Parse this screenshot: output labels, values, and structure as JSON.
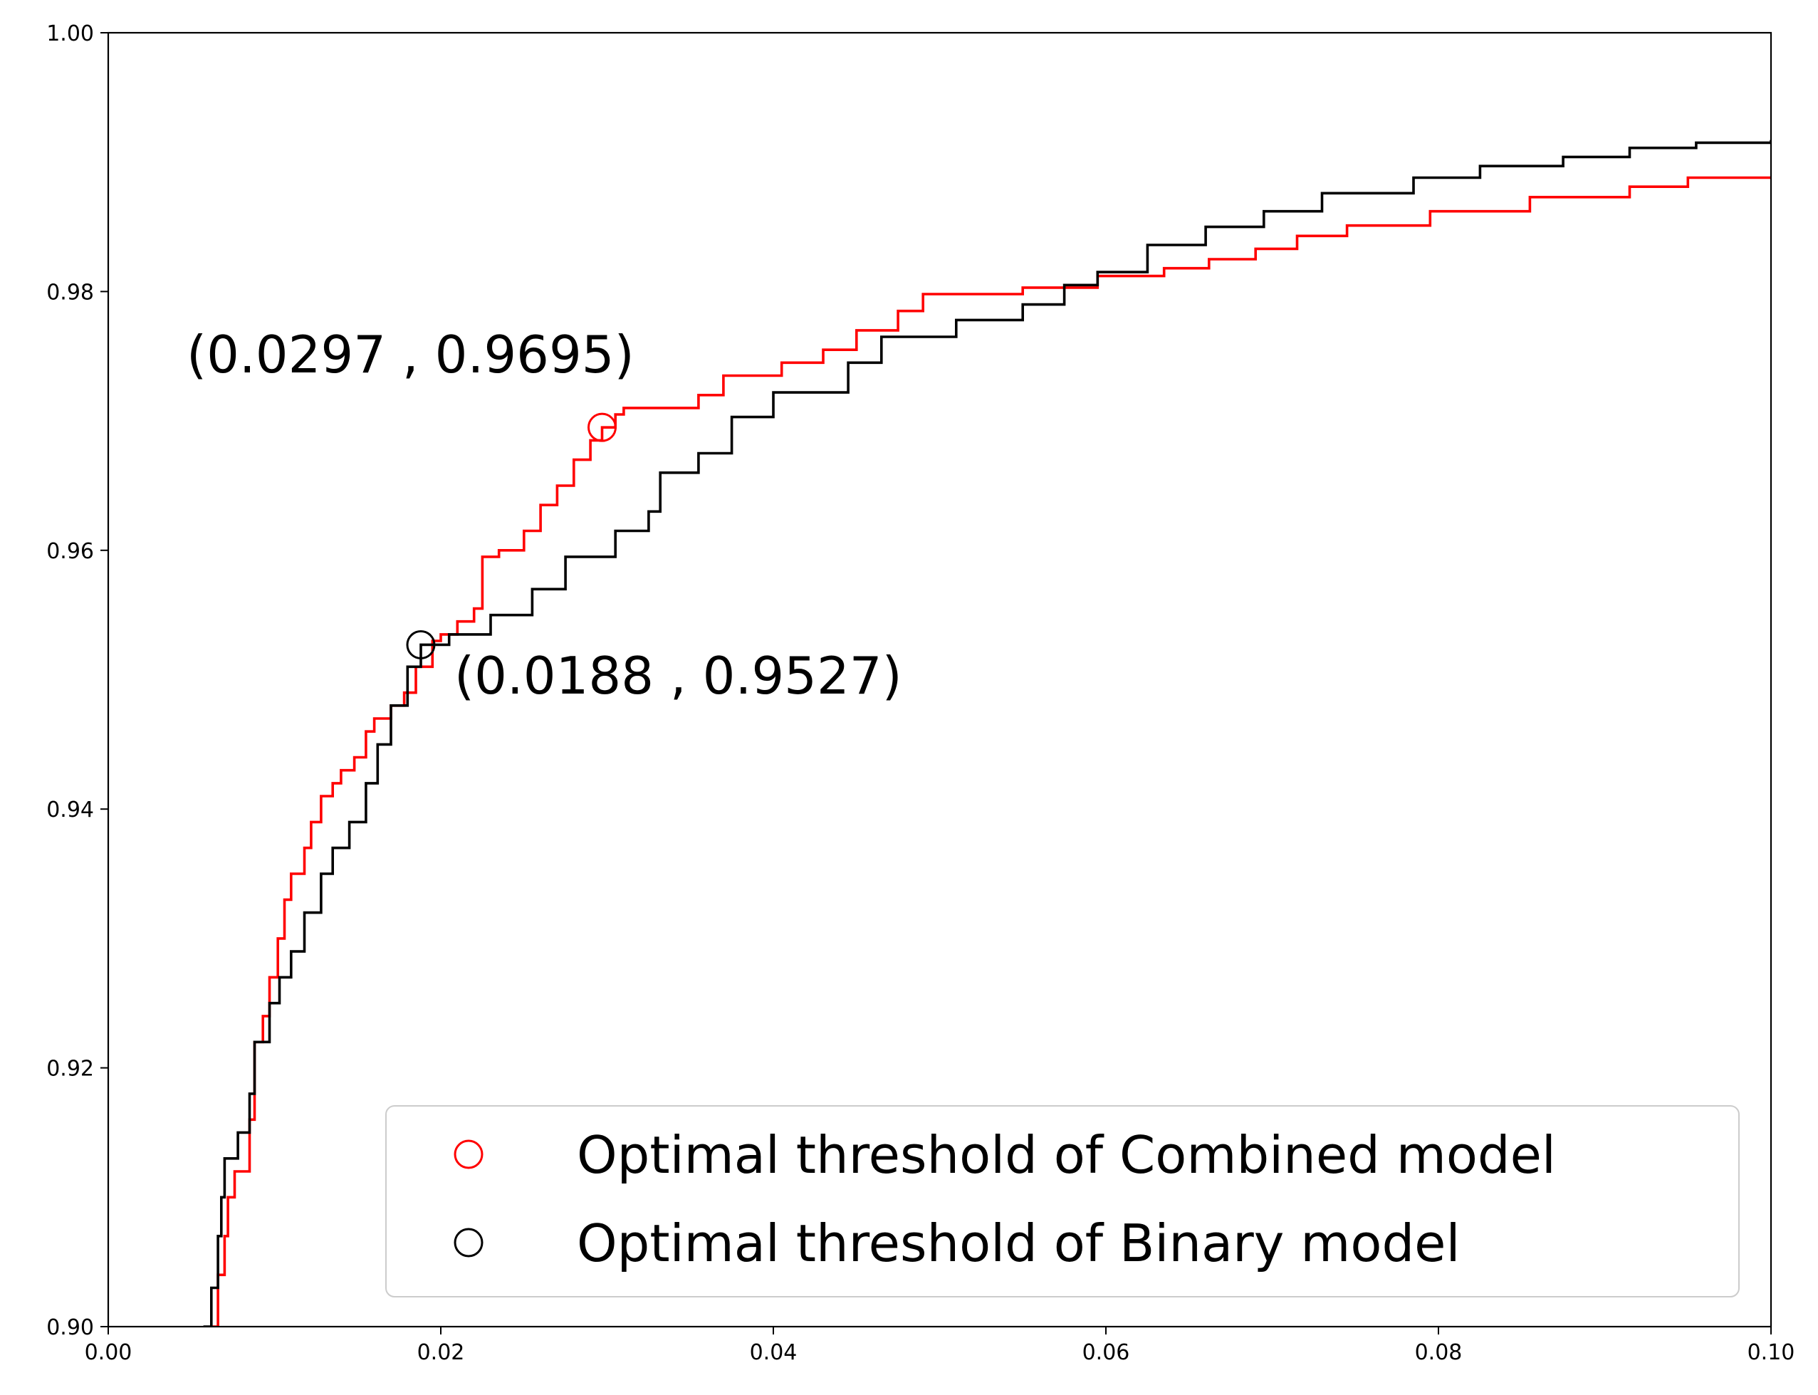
{
  "chart_data": {
    "type": "line",
    "xlim": [
      0.0,
      0.1
    ],
    "ylim": [
      0.9,
      1.0
    ],
    "x_ticks": [
      "0.00",
      "0.02",
      "0.04",
      "0.06",
      "0.08",
      "0.10"
    ],
    "y_ticks": [
      "0.90",
      "0.92",
      "0.94",
      "0.96",
      "0.98",
      "1.00"
    ],
    "grid": false,
    "legend_position": "lower-right",
    "series": [
      {
        "color": "#ff0000",
        "step": true,
        "points": [
          [
            0.0063,
            0.9
          ],
          [
            0.0066,
            0.904
          ],
          [
            0.007,
            0.907
          ],
          [
            0.0072,
            0.91
          ],
          [
            0.0076,
            0.912
          ],
          [
            0.0085,
            0.916
          ],
          [
            0.0088,
            0.922
          ],
          [
            0.0093,
            0.924
          ],
          [
            0.0097,
            0.927
          ],
          [
            0.0102,
            0.93
          ],
          [
            0.0106,
            0.933
          ],
          [
            0.011,
            0.935
          ],
          [
            0.0118,
            0.937
          ],
          [
            0.0122,
            0.939
          ],
          [
            0.0128,
            0.941
          ],
          [
            0.0135,
            0.942
          ],
          [
            0.014,
            0.943
          ],
          [
            0.0148,
            0.944
          ],
          [
            0.0155,
            0.946
          ],
          [
            0.016,
            0.947
          ],
          [
            0.017,
            0.948
          ],
          [
            0.0178,
            0.949
          ],
          [
            0.0185,
            0.951
          ],
          [
            0.0195,
            0.953
          ],
          [
            0.02,
            0.9535
          ],
          [
            0.021,
            0.9545
          ],
          [
            0.022,
            0.9555
          ],
          [
            0.0225,
            0.9595
          ],
          [
            0.0235,
            0.96
          ],
          [
            0.025,
            0.9615
          ],
          [
            0.026,
            0.9635
          ],
          [
            0.027,
            0.965
          ],
          [
            0.028,
            0.967
          ],
          [
            0.029,
            0.9685
          ],
          [
            0.0297,
            0.9695
          ],
          [
            0.0305,
            0.9705
          ],
          [
            0.031,
            0.971
          ],
          [
            0.0355,
            0.972
          ],
          [
            0.037,
            0.9735
          ],
          [
            0.0405,
            0.9745
          ],
          [
            0.043,
            0.9755
          ],
          [
            0.045,
            0.977
          ],
          [
            0.0475,
            0.9785
          ],
          [
            0.049,
            0.9798
          ],
          [
            0.055,
            0.9803
          ],
          [
            0.0595,
            0.9812
          ],
          [
            0.0635,
            0.9818
          ],
          [
            0.0662,
            0.9825
          ],
          [
            0.069,
            0.9833
          ],
          [
            0.0715,
            0.9843
          ],
          [
            0.0745,
            0.9851
          ],
          [
            0.0795,
            0.9862
          ],
          [
            0.0855,
            0.9873
          ],
          [
            0.0915,
            0.9881
          ],
          [
            0.095,
            0.9888
          ],
          [
            0.1,
            0.9889
          ]
        ]
      },
      {
        "color": "#000000",
        "step": true,
        "points": [
          [
            0.0058,
            0.9
          ],
          [
            0.0062,
            0.903
          ],
          [
            0.0066,
            0.907
          ],
          [
            0.0068,
            0.91
          ],
          [
            0.007,
            0.913
          ],
          [
            0.0078,
            0.915
          ],
          [
            0.0085,
            0.918
          ],
          [
            0.0088,
            0.922
          ],
          [
            0.0097,
            0.925
          ],
          [
            0.0103,
            0.927
          ],
          [
            0.011,
            0.929
          ],
          [
            0.0118,
            0.932
          ],
          [
            0.0128,
            0.935
          ],
          [
            0.0135,
            0.937
          ],
          [
            0.0145,
            0.939
          ],
          [
            0.0155,
            0.942
          ],
          [
            0.0162,
            0.945
          ],
          [
            0.017,
            0.948
          ],
          [
            0.018,
            0.951
          ],
          [
            0.0188,
            0.9527
          ],
          [
            0.0205,
            0.9535
          ],
          [
            0.023,
            0.955
          ],
          [
            0.0255,
            0.957
          ],
          [
            0.0275,
            0.9595
          ],
          [
            0.0305,
            0.9615
          ],
          [
            0.0325,
            0.963
          ],
          [
            0.0332,
            0.966
          ],
          [
            0.0355,
            0.9675
          ],
          [
            0.0375,
            0.9703
          ],
          [
            0.04,
            0.9722
          ],
          [
            0.0445,
            0.9745
          ],
          [
            0.0465,
            0.9765
          ],
          [
            0.051,
            0.9778
          ],
          [
            0.055,
            0.979
          ],
          [
            0.0575,
            0.9805
          ],
          [
            0.0595,
            0.9815
          ],
          [
            0.0625,
            0.9836
          ],
          [
            0.066,
            0.985
          ],
          [
            0.0695,
            0.9862
          ],
          [
            0.073,
            0.9876
          ],
          [
            0.0785,
            0.9888
          ],
          [
            0.0825,
            0.9897
          ],
          [
            0.0875,
            0.9904
          ],
          [
            0.0915,
            0.9911
          ],
          [
            0.0955,
            0.9915
          ],
          [
            0.1,
            0.9917
          ]
        ]
      }
    ],
    "markers": [
      {
        "series_name": "Optimal threshold of Combined model",
        "x": 0.0297,
        "y": 0.9695,
        "color": "#ff0000",
        "label": "(0.0297 , 0.9695)"
      },
      {
        "series_name": "Optimal threshold of Binary model",
        "x": 0.0188,
        "y": 0.9527,
        "color": "#000000",
        "label": "(0.0188 , 0.9527)"
      }
    ],
    "legend": [
      {
        "label": "Optimal threshold of Combined model",
        "color": "#ff0000",
        "marker": "circle"
      },
      {
        "label": "Optimal threshold of Binary model",
        "color": "#000000",
        "marker": "circle"
      }
    ]
  }
}
